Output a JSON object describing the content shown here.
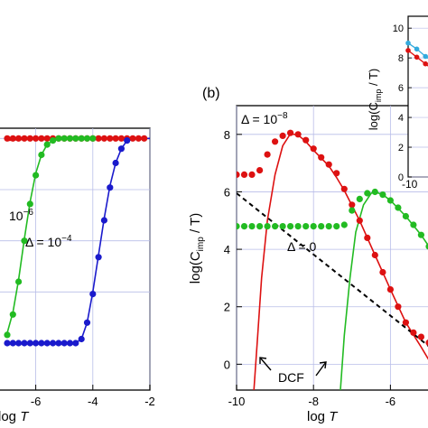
{
  "panel_b_label": "(b)",
  "chart_data": [
    {
      "type": "scatter",
      "panel": "a",
      "xlabel_italic": "T",
      "xlabel_prefix": "log",
      "xlim": [
        -7,
        -2
      ],
      "ylim": [
        0,
        1.05
      ],
      "xticks": [
        -6,
        -4,
        -2
      ],
      "x_tick_labels": [
        "-6",
        "-4",
        "-2"
      ],
      "grid": true,
      "series": [
        {
          "name": "",
          "color": "#dd1111",
          "marker": true,
          "line": true,
          "points": [
            [
              -7.0,
              1.0
            ],
            [
              -6.8,
              1.0
            ],
            [
              -6.6,
              1.0
            ],
            [
              -6.4,
              1.0
            ],
            [
              -6.2,
              1.0
            ],
            [
              -6.0,
              1.0
            ],
            [
              -5.8,
              1.0
            ],
            [
              -5.6,
              1.0
            ],
            [
              -5.4,
              1.0
            ],
            [
              -5.2,
              1.0
            ],
            [
              -5.0,
              1.0
            ],
            [
              -4.8,
              1.0
            ],
            [
              -4.6,
              1.0
            ],
            [
              -4.4,
              1.0
            ],
            [
              -4.2,
              1.0
            ],
            [
              -4.0,
              1.0
            ],
            [
              -3.8,
              1.0
            ],
            [
              -3.6,
              1.0
            ],
            [
              -3.4,
              1.0
            ],
            [
              -3.2,
              1.0
            ],
            [
              -3.0,
              1.0
            ],
            [
              -2.8,
              1.0
            ],
            [
              -2.6,
              1.0
            ],
            [
              -2.4,
              1.0
            ],
            [
              -2.2,
              1.0
            ]
          ],
          "curve": [
            [
              -7.0,
              0.99
            ],
            [
              -6.0,
              1.0
            ],
            [
              -4.0,
              1.0
            ],
            [
              -2.0,
              1.0
            ]
          ]
        },
        {
          "name": "",
          "color": "#22bb22",
          "marker": true,
          "line": true,
          "points": [
            [
              -7.0,
              0.04
            ],
            [
              -6.8,
              0.14
            ],
            [
              -6.6,
              0.3
            ],
            [
              -6.4,
              0.5
            ],
            [
              -6.2,
              0.68
            ],
            [
              -6.0,
              0.82
            ],
            [
              -5.8,
              0.92
            ],
            [
              -5.6,
              0.97
            ],
            [
              -5.4,
              0.99
            ],
            [
              -5.2,
              1.0
            ],
            [
              -5.0,
              1.0
            ],
            [
              -4.8,
              1.0
            ],
            [
              -4.6,
              1.0
            ],
            [
              -4.4,
              1.0
            ],
            [
              -4.2,
              1.0
            ],
            [
              -4.0,
              1.0
            ]
          ],
          "curve": [
            [
              -7.0,
              0.05
            ],
            [
              -6.8,
              0.15
            ],
            [
              -6.6,
              0.31
            ],
            [
              -6.4,
              0.51
            ],
            [
              -6.2,
              0.69
            ],
            [
              -6.0,
              0.83
            ],
            [
              -5.8,
              0.92
            ],
            [
              -5.6,
              0.97
            ],
            [
              -5.4,
              0.99
            ],
            [
              -5.0,
              1.0
            ],
            [
              -4.0,
              1.0
            ]
          ]
        },
        {
          "name": "",
          "color": "#1a1acc",
          "marker": true,
          "line": true,
          "points": [
            [
              -7.0,
              0.0
            ],
            [
              -6.8,
              0.0
            ],
            [
              -6.6,
              0.0
            ],
            [
              -6.4,
              0.0
            ],
            [
              -6.2,
              0.0
            ],
            [
              -6.0,
              0.0
            ],
            [
              -5.8,
              0.0
            ],
            [
              -5.6,
              0.0
            ],
            [
              -5.4,
              0.0
            ],
            [
              -5.2,
              0.0
            ],
            [
              -5.0,
              0.0
            ],
            [
              -4.8,
              0.0
            ],
            [
              -4.6,
              0.0
            ],
            [
              -4.4,
              0.02
            ],
            [
              -4.2,
              0.1
            ],
            [
              -4.0,
              0.24
            ],
            [
              -3.8,
              0.42
            ],
            [
              -3.6,
              0.6
            ],
            [
              -3.4,
              0.76
            ],
            [
              -3.2,
              0.88
            ],
            [
              -3.0,
              0.95
            ],
            [
              -2.8,
              0.99
            ]
          ],
          "curve": [
            [
              -7.0,
              0.0
            ],
            [
              -4.6,
              0.0
            ],
            [
              -4.4,
              0.02
            ],
            [
              -4.2,
              0.1
            ],
            [
              -4.0,
              0.25
            ],
            [
              -3.8,
              0.43
            ],
            [
              -3.6,
              0.61
            ],
            [
              -3.4,
              0.77
            ],
            [
              -3.2,
              0.88
            ],
            [
              -3.0,
              0.95
            ],
            [
              -2.8,
              0.99
            ],
            [
              -2.4,
              1.0
            ],
            [
              -2.0,
              1.0
            ]
          ]
        }
      ],
      "annotations": [
        {
          "text": "10",
          "sup": "−6",
          "x": -6.7,
          "y": 0.37
        },
        {
          "text": "Δ = 10",
          "sup": "−4",
          "x": -5.8,
          "y": 0.28
        }
      ]
    },
    {
      "type": "scatter",
      "panel": "b",
      "xlabel_prefix": "log",
      "xlabel_italic": "T",
      "ylabel": "log(C",
      "ylabel_sub": "imp",
      "ylabel_tail": " / T)",
      "xlim": [
        -10,
        -4.6
      ],
      "ylim": [
        -0.9,
        9.0
      ],
      "xticks": [
        -10,
        -8,
        -6
      ],
      "x_tick_labels": [
        "-10",
        "-8",
        "-6"
      ],
      "yticks": [
        0,
        2,
        4,
        6,
        8
      ],
      "y_tick_labels": [
        "0",
        "2",
        "4",
        "6",
        "8"
      ],
      "grid": true,
      "series": [
        {
          "name": "",
          "color": "#dd1111",
          "marker": true,
          "line": true,
          "points": [
            [
              -10.0,
              6.6
            ],
            [
              -9.8,
              6.6
            ],
            [
              -9.6,
              6.6
            ],
            [
              -9.4,
              6.75
            ],
            [
              -9.2,
              7.3
            ],
            [
              -9.0,
              7.75
            ],
            [
              -8.8,
              7.95
            ],
            [
              -8.6,
              8.05
            ],
            [
              -8.4,
              8.0
            ],
            [
              -8.2,
              7.8
            ],
            [
              -8.0,
              7.5
            ],
            [
              -7.8,
              7.2
            ],
            [
              -7.6,
              6.95
            ],
            [
              -7.4,
              6.65
            ],
            [
              -7.2,
              6.1
            ],
            [
              -7.0,
              5.55
            ],
            [
              -6.8,
              5.0
            ],
            [
              -6.6,
              4.4
            ],
            [
              -6.4,
              3.8
            ],
            [
              -6.2,
              3.2
            ],
            [
              -6.0,
              2.6
            ],
            [
              -5.8,
              2.0
            ],
            [
              -5.6,
              1.45
            ],
            [
              -5.4,
              1.1
            ],
            [
              -5.2,
              0.95
            ],
            [
              -5.0,
              0.75
            ],
            [
              -4.8,
              0.55
            ]
          ],
          "curve": [
            [
              -9.55,
              -0.9
            ],
            [
              -9.45,
              1.0
            ],
            [
              -9.35,
              3.0
            ],
            [
              -9.2,
              5.0
            ],
            [
              -9.0,
              6.6
            ],
            [
              -8.8,
              7.6
            ],
            [
              -8.6,
              8.02
            ],
            [
              -8.4,
              7.98
            ],
            [
              -8.2,
              7.75
            ],
            [
              -8.0,
              7.45
            ],
            [
              -7.6,
              6.9
            ],
            [
              -7.4,
              6.5
            ],
            [
              -7.2,
              6.05
            ],
            [
              -6.8,
              5.0
            ],
            [
              -6.4,
              3.8
            ],
            [
              -6.0,
              2.6
            ],
            [
              -5.6,
              1.45
            ],
            [
              -5.2,
              0.6
            ],
            [
              -4.8,
              -0.3
            ]
          ]
        },
        {
          "name": "",
          "color": "#22bb22",
          "marker": true,
          "line": true,
          "points": [
            [
              -10.0,
              4.8
            ],
            [
              -9.8,
              4.8
            ],
            [
              -9.6,
              4.8
            ],
            [
              -9.4,
              4.8
            ],
            [
              -9.2,
              4.8
            ],
            [
              -9.0,
              4.8
            ],
            [
              -8.8,
              4.8
            ],
            [
              -8.6,
              4.8
            ],
            [
              -8.4,
              4.8
            ],
            [
              -8.2,
              4.8
            ],
            [
              -8.0,
              4.8
            ],
            [
              -7.8,
              4.8
            ],
            [
              -7.6,
              4.8
            ],
            [
              -7.4,
              4.8
            ],
            [
              -7.2,
              4.85
            ],
            [
              -7.0,
              5.35
            ],
            [
              -6.8,
              5.75
            ],
            [
              -6.6,
              5.95
            ],
            [
              -6.4,
              6.0
            ],
            [
              -6.2,
              5.9
            ],
            [
              -6.0,
              5.7
            ],
            [
              -5.8,
              5.45
            ],
            [
              -5.6,
              5.15
            ],
            [
              -5.4,
              4.85
            ],
            [
              -5.2,
              4.5
            ],
            [
              -5.0,
              4.1
            ],
            [
              -4.8,
              3.7
            ]
          ],
          "curve": [
            [
              -7.3,
              -0.9
            ],
            [
              -7.2,
              1.0
            ],
            [
              -7.05,
              3.0
            ],
            [
              -6.9,
              4.6
            ],
            [
              -6.7,
              5.55
            ],
            [
              -6.5,
              5.95
            ],
            [
              -6.4,
              6.0
            ],
            [
              -6.2,
              5.9
            ],
            [
              -6.0,
              5.7
            ],
            [
              -5.6,
              5.15
            ],
            [
              -5.2,
              4.5
            ],
            [
              -4.8,
              3.7
            ]
          ]
        }
      ],
      "reference_line": {
        "name": "Δ = 0",
        "color": "#000000",
        "style": "dashed",
        "points": [
          [
            -10.0,
            5.95
          ],
          [
            -4.6,
            0.2
          ]
        ]
      },
      "annotations": [
        {
          "text": "Δ = 10",
          "sup": "−8",
          "x": -9.9,
          "y": 8.45
        },
        {
          "text": "Δ = 0",
          "x": -8.8,
          "y": 3.25
        },
        {
          "text": "DCF",
          "x": -9.2,
          "y": -0.55
        }
      ]
    },
    {
      "type": "scatter",
      "panel": "inset",
      "ylabel": "log(C",
      "ylabel_sub": "imp",
      "ylabel_tail": " / T)",
      "xlim": [
        -10,
        -9.0
      ],
      "ylim": [
        0,
        10.8
      ],
      "yticks": [
        0,
        2,
        4,
        6,
        8,
        10
      ],
      "y_tick_labels": [
        "0",
        "2",
        "4",
        "6",
        "8",
        "10"
      ],
      "x_tick_labels": [
        "-10"
      ],
      "series": [
        {
          "name": "",
          "color": "#33aadd",
          "marker": true,
          "line": true,
          "points": [
            [
              -10.0,
              9.0
            ],
            [
              -9.8,
              8.6
            ],
            [
              -9.6,
              8.1
            ],
            [
              -9.4,
              7.7
            ],
            [
              -9.2,
              7.2
            ]
          ]
        },
        {
          "name": "",
          "color": "#dd1111",
          "marker": true,
          "line": true,
          "points": [
            [
              -10.0,
              8.5
            ],
            [
              -9.8,
              8.05
            ],
            [
              -9.6,
              7.6
            ],
            [
              -9.4,
              7.15
            ],
            [
              -9.2,
              6.7
            ]
          ]
        }
      ]
    }
  ]
}
